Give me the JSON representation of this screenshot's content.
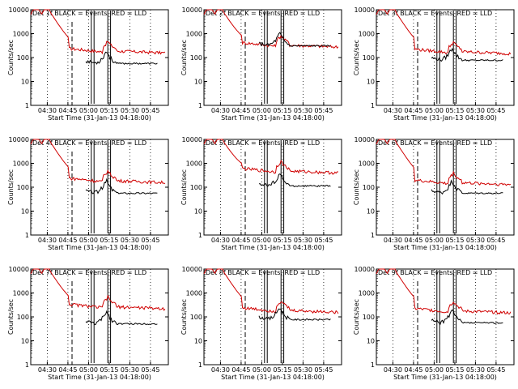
{
  "chart_data": {
    "type": "line",
    "ylabel": "Counts/sec",
    "xlabel": "Start Time (31-Jan-13 04:18:00)",
    "x_ticks": [
      "04:30",
      "04:45",
      "05:00",
      "05:15",
      "05:30",
      "05:45"
    ],
    "y_ticks": [
      "1",
      "10",
      "100",
      "1000",
      "10000"
    ],
    "y_scale": "log",
    "ylim": [
      1,
      10000
    ],
    "grid": "dotted vertical lines at x ticks",
    "series_colors": {
      "events": "#000000",
      "lld": "#d00000"
    },
    "panels": [
      {
        "title": "Det 1f BLACK = Events, RED = LLD",
        "events_level": 55,
        "lld_level": 170
      },
      {
        "title": "Det 2f BLACK = Events, RED = LLD",
        "events_level": 300,
        "lld_level": 300
      },
      {
        "title": "Det 3f BLACK = Events, RED = LLD",
        "events_level": 75,
        "lld_level": 160
      },
      {
        "title": "Det 4f BLACK = Events, RED = LLD",
        "events_level": 55,
        "lld_level": 170
      },
      {
        "title": "Det 5f BLACK = Events, RED = LLD",
        "events_level": 110,
        "lld_level": 430
      },
      {
        "title": "Det 6f BLACK = Events, RED = LLD",
        "events_level": 55,
        "lld_level": 140
      },
      {
        "title": "Det 7f BLACK = Events, RED = LLD",
        "events_level": 50,
        "lld_level": 240
      },
      {
        "title": "Det 8f BLACK = Events, RED = LLD",
        "events_level": 75,
        "lld_level": 170
      },
      {
        "title": "Det 9f BLACK = Events, RED = LLD",
        "events_level": 55,
        "lld_level": 160
      }
    ]
  }
}
